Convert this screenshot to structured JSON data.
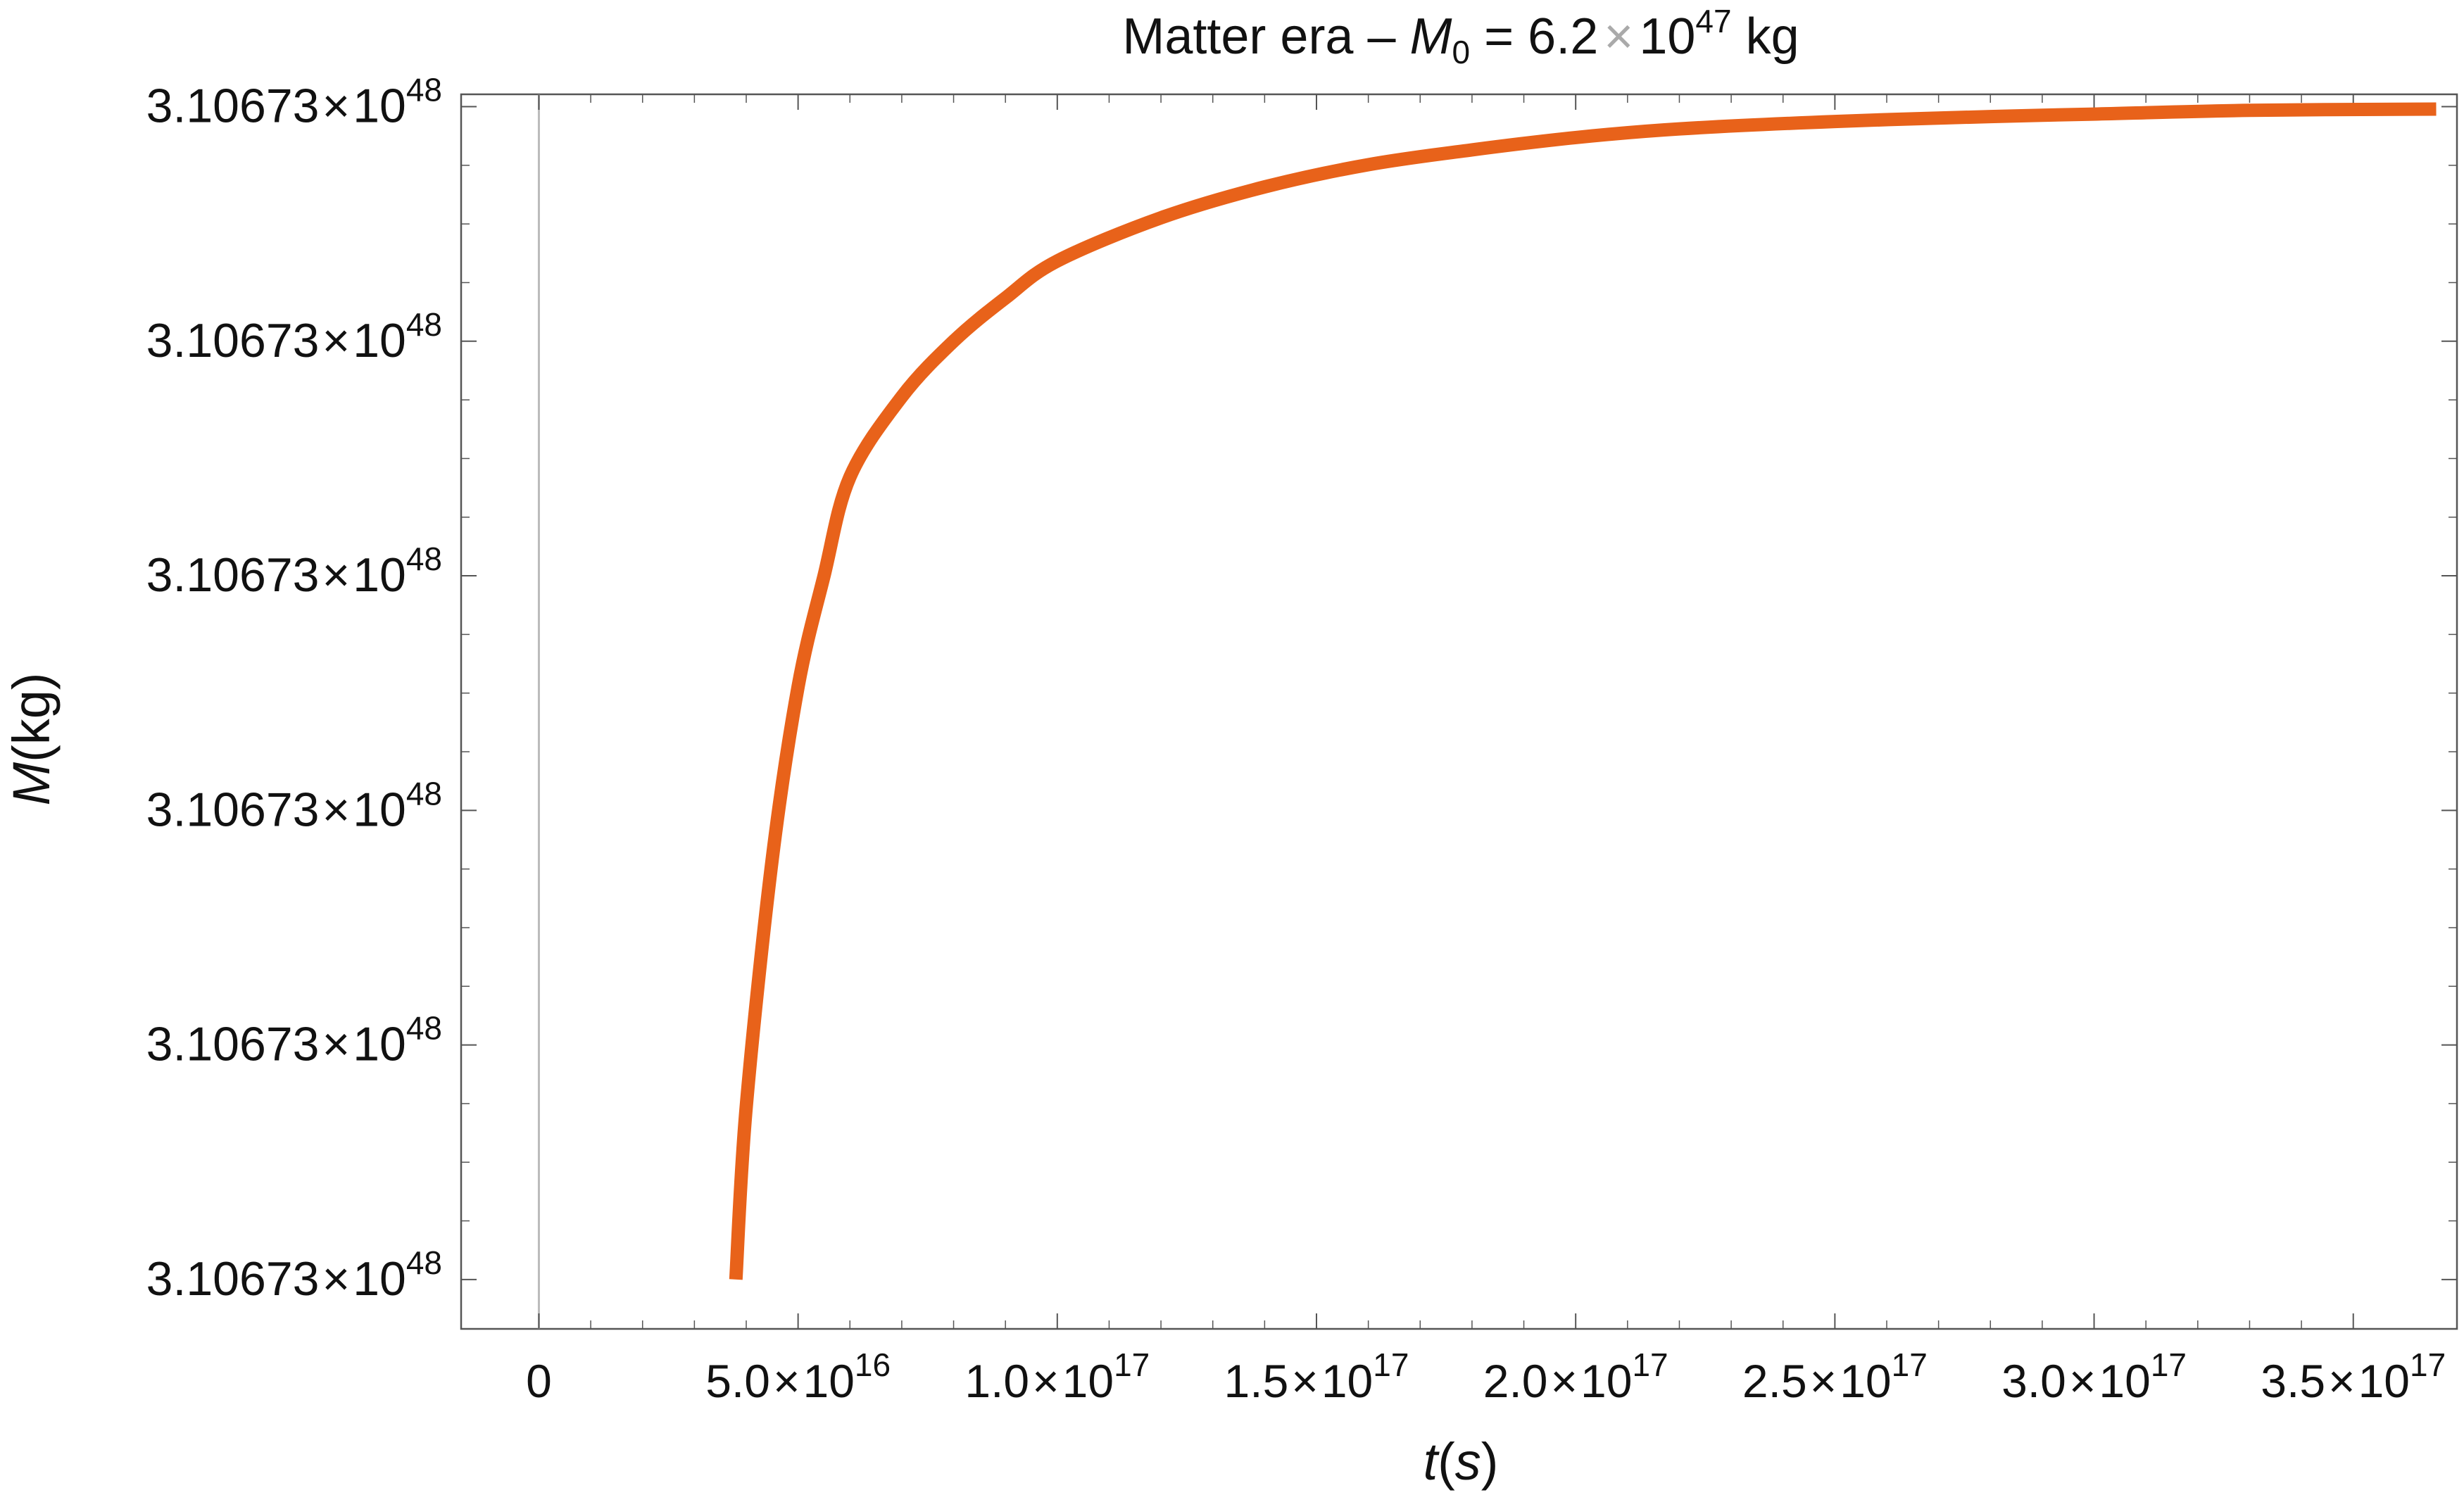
{
  "chart_data": {
    "type": "line",
    "title": {
      "prefix": "Matter era – ",
      "var": "M",
      "var_sub": "0",
      "eq": " = 6.2",
      "times": "×",
      "base": "10",
      "exp": "47",
      "unit": " kg"
    },
    "xlabel": {
      "var": "t",
      "open": "(",
      "unit": "s",
      "close": ")"
    },
    "ylabel": {
      "var": "M",
      "unit": "(kg)"
    },
    "xlim": [
      -1.5e+16,
      3.7e+17
    ],
    "ylim": [
      0.0,
      1.0
    ],
    "x_ticks": [
      {
        "value": 0,
        "mantissa": "0",
        "base": "",
        "exp": ""
      },
      {
        "value": 5e+16,
        "mantissa": "5.0",
        "base": "10",
        "exp": "16"
      },
      {
        "value": 1e+17,
        "mantissa": "1.0",
        "base": "10",
        "exp": "17"
      },
      {
        "value": 1.5e+17,
        "mantissa": "1.5",
        "base": "10",
        "exp": "17"
      },
      {
        "value": 2e+17,
        "mantissa": "2.0",
        "base": "10",
        "exp": "17"
      },
      {
        "value": 2.5e+17,
        "mantissa": "2.5",
        "base": "10",
        "exp": "17"
      },
      {
        "value": 3e+17,
        "mantissa": "3.0",
        "base": "10",
        "exp": "17"
      },
      {
        "value": 3.5e+17,
        "mantissa": "3.5",
        "base": "10",
        "exp": "17"
      }
    ],
    "y_ticks": [
      {
        "value": 0.04,
        "mantissa": "3.10673",
        "base": "10",
        "exp": "48"
      },
      {
        "value": 0.23,
        "mantissa": "3.10673",
        "base": "10",
        "exp": "48"
      },
      {
        "value": 0.42,
        "mantissa": "3.10673",
        "base": "10",
        "exp": "48"
      },
      {
        "value": 0.61,
        "mantissa": "3.10673",
        "base": "10",
        "exp": "48"
      },
      {
        "value": 0.8,
        "mantissa": "3.10673",
        "base": "10",
        "exp": "48"
      },
      {
        "value": 0.99,
        "mantissa": "3.10673",
        "base": "10",
        "exp": "48"
      }
    ],
    "times_symbol": "×",
    "series": [
      {
        "color": "#e8621a",
        "x": [
          3.8e+16,
          4e+16,
          4.5e+16,
          5e+16,
          5.5e+16,
          6e+16,
          7e+16,
          8e+16,
          9e+16,
          1e+17,
          1.2e+17,
          1.4e+17,
          1.6e+17,
          1.8e+17,
          2e+17,
          2.2e+17,
          2.5e+17,
          2.8e+17,
          3e+17,
          3.3e+17,
          3.66e+17
        ],
        "y": [
          0.04,
          0.18,
          0.38,
          0.52,
          0.61,
          0.69,
          0.755,
          0.8,
          0.835,
          0.865,
          0.9,
          0.925,
          0.943,
          0.955,
          0.965,
          0.972,
          0.978,
          0.982,
          0.984,
          0.987,
          0.988
        ]
      }
    ],
    "grid": false,
    "legend": "none",
    "frame_color": "#555555",
    "zero_line_color": "#bbbbbb"
  }
}
